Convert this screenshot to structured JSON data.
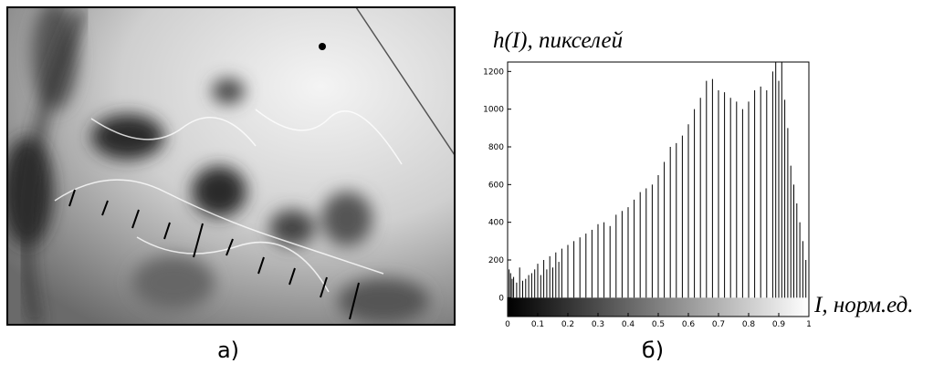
{
  "chart_data": {
    "type": "stem",
    "y_label": "h(I), пикселей",
    "x_label": "I, норм.ед.",
    "panel_a_label": "а)",
    "panel_b_label": "б)",
    "color": "#000000",
    "xlim": [
      0,
      1
    ],
    "xticks": [
      0,
      0.1,
      0.2,
      0.3,
      0.4,
      0.5,
      0.6,
      0.7,
      0.8,
      0.9,
      1
    ],
    "ylim": [
      -100,
      1250
    ],
    "yticks": [
      0,
      200,
      400,
      600,
      800,
      1000,
      1200
    ],
    "x": [
      0,
      0.005,
      0.01,
      0.015,
      0.02,
      0.03,
      0.04,
      0.05,
      0.06,
      0.07,
      0.08,
      0.09,
      0.1,
      0.11,
      0.12,
      0.13,
      0.14,
      0.15,
      0.16,
      0.17,
      0.18,
      0.2,
      0.22,
      0.24,
      0.26,
      0.28,
      0.3,
      0.32,
      0.34,
      0.36,
      0.38,
      0.4,
      0.42,
      0.44,
      0.46,
      0.48,
      0.5,
      0.52,
      0.54,
      0.56,
      0.58,
      0.6,
      0.62,
      0.64,
      0.66,
      0.68,
      0.7,
      0.72,
      0.74,
      0.76,
      0.78,
      0.8,
      0.82,
      0.84,
      0.86,
      0.88,
      0.89,
      0.9,
      0.91,
      0.92,
      0.93,
      0.94,
      0.95,
      0.96,
      0.97,
      0.98,
      0.99,
      1
    ],
    "values": [
      250,
      150,
      130,
      100,
      110,
      80,
      160,
      90,
      100,
      120,
      130,
      150,
      180,
      120,
      200,
      150,
      220,
      160,
      240,
      190,
      260,
      280,
      300,
      320,
      340,
      360,
      390,
      400,
      380,
      440,
      460,
      480,
      520,
      560,
      580,
      600,
      650,
      720,
      800,
      820,
      860,
      920,
      1000,
      1060,
      1150,
      1160,
      1100,
      1090,
      1060,
      1040,
      1000,
      1040,
      1100,
      1120,
      1100,
      1200,
      1250,
      1150,
      1250,
      1050,
      900,
      700,
      600,
      500,
      400,
      300,
      200,
      120
    ]
  }
}
